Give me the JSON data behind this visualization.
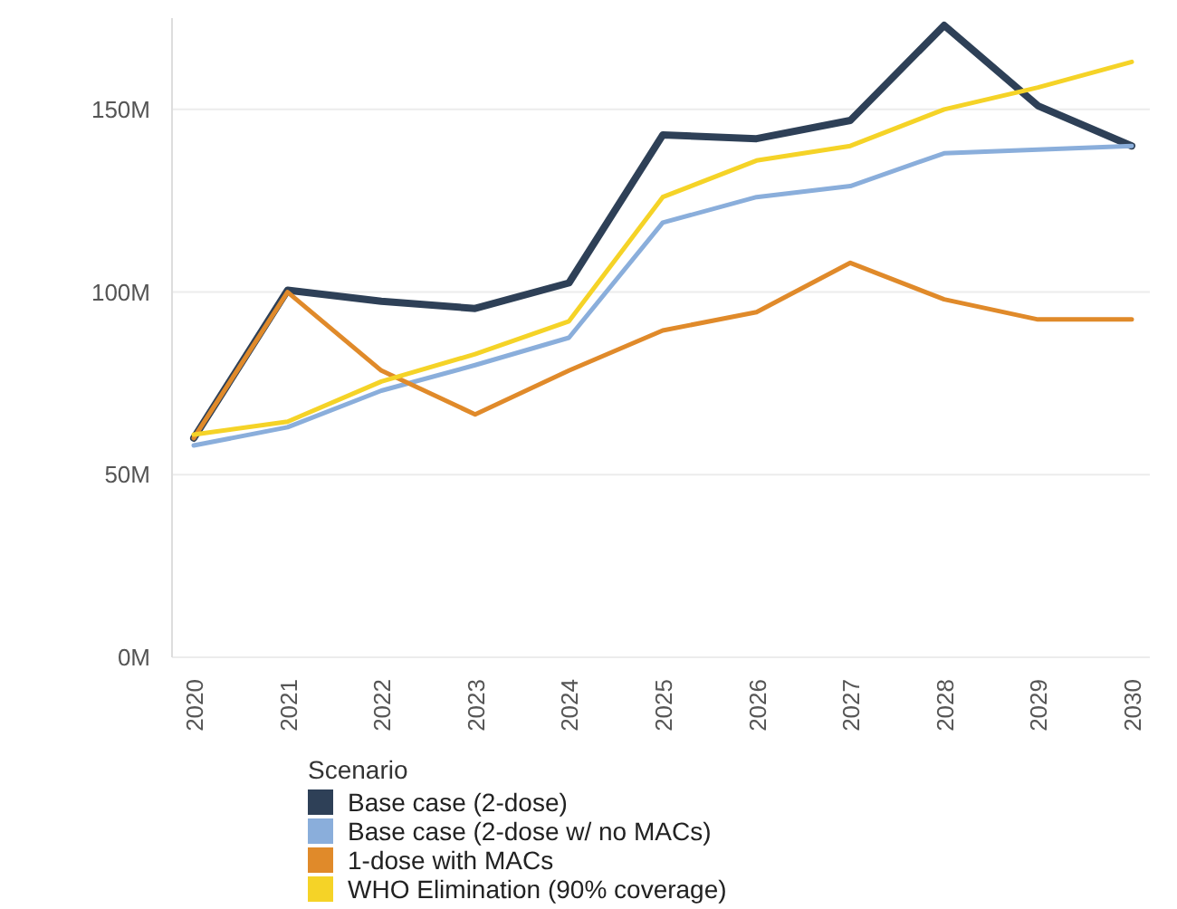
{
  "chart_data": {
    "type": "line",
    "categories": [
      "2020",
      "2021",
      "2022",
      "2023",
      "2024",
      "2025",
      "2026",
      "2027",
      "2028",
      "2029",
      "2030"
    ],
    "series": [
      {
        "name": "Base case (2-dose)",
        "color": "#2e4057",
        "values": [
          60,
          100.5,
          97.5,
          95.5,
          102.5,
          143,
          142,
          147,
          173,
          151,
          140
        ]
      },
      {
        "name": "Base case (2-dose w/ no MACs)",
        "color": "#8aaedb",
        "values": [
          58,
          63,
          73,
          80,
          87.5,
          119,
          126,
          129,
          138,
          139,
          140
        ]
      },
      {
        "name": "1-dose with MACs",
        "color": "#e08a2a",
        "values": [
          60,
          100,
          78.5,
          66.5,
          78.5,
          89.5,
          94.5,
          108,
          98,
          92.5,
          92.5
        ]
      },
      {
        "name": "WHO Elimination (90% coverage)",
        "color": "#f5d327",
        "values": [
          61,
          64.5,
          75.5,
          83,
          92,
          126,
          136,
          140,
          150,
          156,
          163
        ]
      }
    ],
    "ylim": [
      0,
      175
    ],
    "yticks": [
      {
        "value": 0,
        "label": "0M"
      },
      {
        "value": 50,
        "label": "50M"
      },
      {
        "value": 100,
        "label": "100M"
      },
      {
        "value": 150,
        "label": "150M"
      }
    ],
    "grid": "y",
    "legend": "bottom",
    "legend_title": "Scenario",
    "marker": "none",
    "line_style": "solid"
  }
}
